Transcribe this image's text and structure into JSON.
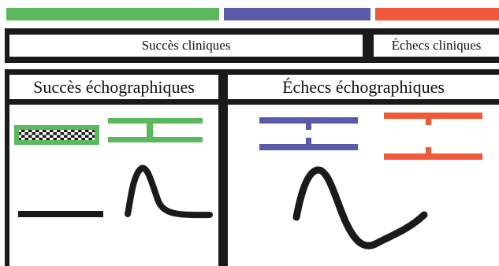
{
  "colors": {
    "green": "#5cb85c",
    "blue": "#5a5aa8",
    "orange": "#f05a3a",
    "black": "#1a1a1a"
  },
  "headers": {
    "clinical_success": "Succès cliniques",
    "clinical_failure": "Échecs cliniques",
    "echo_success": "Succès échographiques",
    "echo_failure": "Échecs échographiques"
  }
}
